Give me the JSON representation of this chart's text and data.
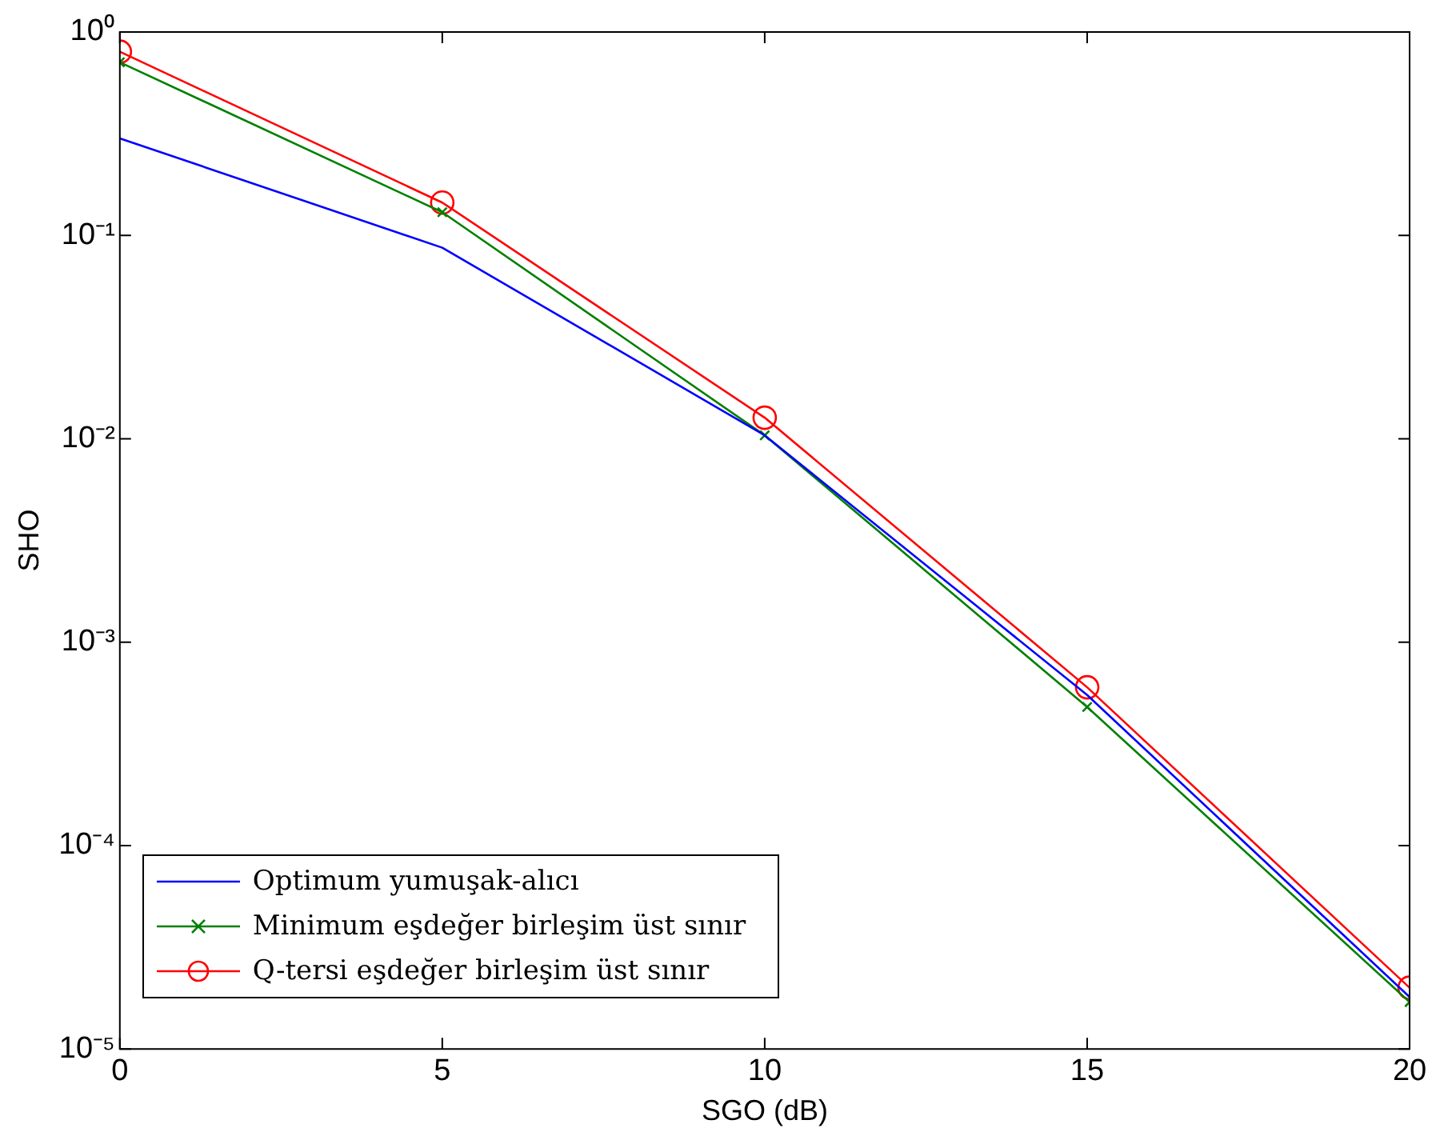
{
  "chart_data": {
    "type": "line",
    "xlabel": "SGO (dB)",
    "ylabel": "SHO",
    "x": [
      0,
      5,
      10,
      15,
      20
    ],
    "series": [
      {
        "name": "Optimum yumuşak-alıcı",
        "color": "#0000ff",
        "marker": "none",
        "values": [
          0.3,
          0.087,
          0.0104,
          0.00055,
          1.8e-05
        ]
      },
      {
        "name": "Minimum eşdeğer birleşim üst sınır",
        "color": "#008000",
        "marker": "cross",
        "values": [
          0.71,
          0.13,
          0.0104,
          0.00048,
          1.7e-05
        ]
      },
      {
        "name": "Q-tersi eşdeğer birleşim üst sınır",
        "color": "#ff0000",
        "marker": "circle",
        "values": [
          0.8,
          0.145,
          0.0127,
          0.0006,
          2e-05
        ]
      }
    ],
    "log": "y",
    "xlim": [
      0,
      20
    ],
    "xticks": [
      0,
      5,
      10,
      15,
      20
    ],
    "ylim": [
      1e-05,
      1
    ],
    "yticks": [
      {
        "value": 1e-05,
        "label": "10⁻⁵"
      },
      {
        "value": 0.0001,
        "label": "10⁻⁴"
      },
      {
        "value": 0.001,
        "label": "10⁻³"
      },
      {
        "value": 0.01,
        "label": "10⁻²"
      },
      {
        "value": 0.1,
        "label": "10⁻¹"
      },
      {
        "value": 1,
        "label": "10⁰"
      }
    ],
    "grid": false,
    "legend": "bottom left",
    "line_style": "solid"
  }
}
